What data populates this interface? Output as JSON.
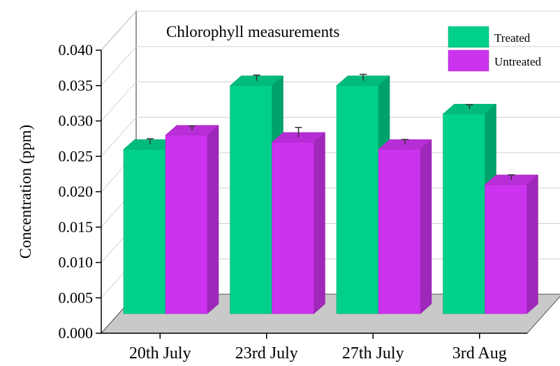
{
  "chart_data": {
    "type": "bar",
    "title": "Chlorophyll measurements",
    "xlabel": "",
    "ylabel": "Concentration (ppm)",
    "ylim": [
      0,
      0.04
    ],
    "yticks": [
      "0.000",
      "0.005",
      "0.010",
      "0.015",
      "0.020",
      "0.025",
      "0.030",
      "0.035",
      "0.040"
    ],
    "categories": [
      "20th July",
      "23rd July",
      "27th July",
      "3rd Aug"
    ],
    "series": [
      {
        "name": "Treated",
        "color": "#00d08a",
        "values": [
          0.026,
          0.035,
          0.035,
          0.031
        ],
        "errors": [
          0.0008,
          0.0008,
          0.0009,
          0.0006
        ]
      },
      {
        "name": "Untreated",
        "color": "#cc33ee",
        "values": [
          0.028,
          0.027,
          0.026,
          0.021
        ],
        "errors": [
          0.0006,
          0.0014,
          0.0007,
          0.0007
        ]
      }
    ],
    "legend_position": "top-right",
    "style": "3d"
  }
}
